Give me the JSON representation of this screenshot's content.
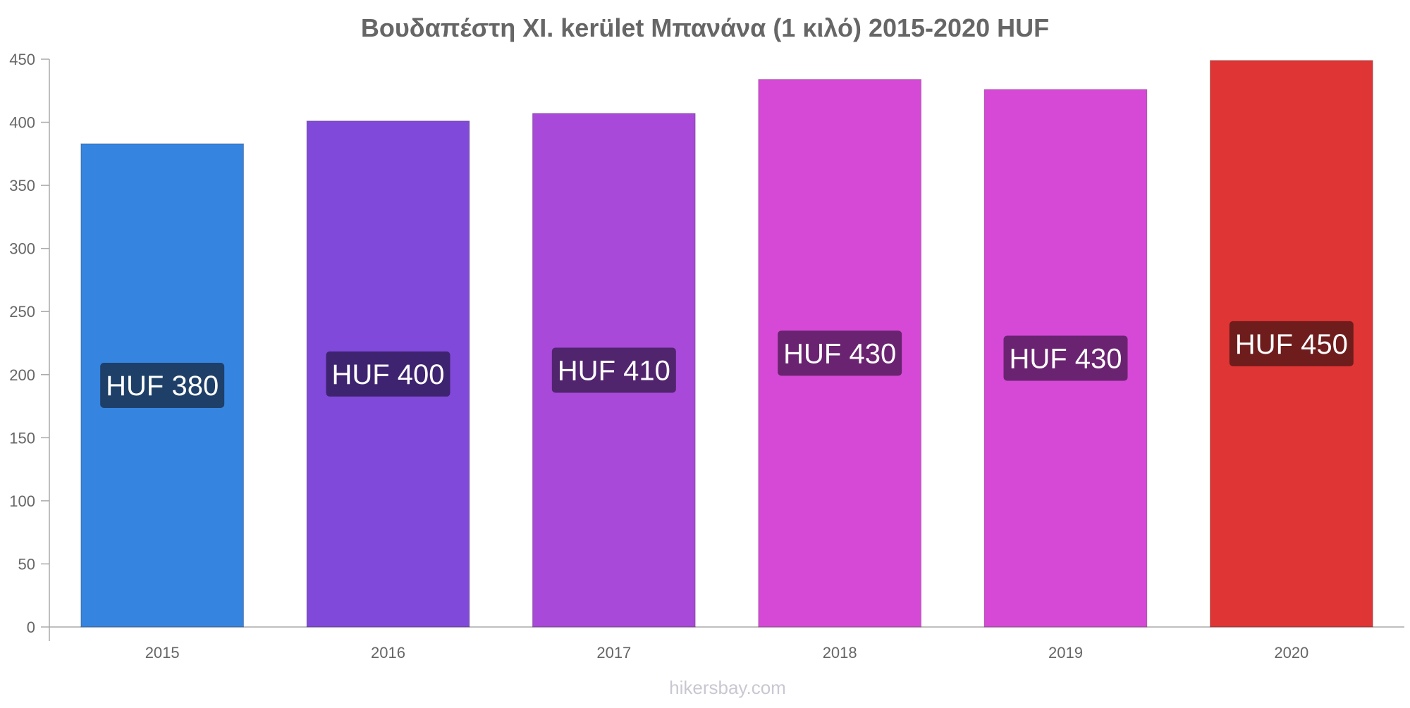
{
  "chart_data": {
    "type": "bar",
    "title": "Βουδαπέστη XI. kerület Μπανάνα (1 κιλό) 2015-2020 HUF",
    "categories": [
      "2015",
      "2016",
      "2017",
      "2018",
      "2019",
      "2020"
    ],
    "values": [
      383,
      401,
      407,
      434,
      426,
      449
    ],
    "data_labels": [
      "HUF 380",
      "HUF 400",
      "HUF 410",
      "HUF 430",
      "HUF 430",
      "HUF 450"
    ],
    "colors": [
      "#3584e0",
      "#8149d9",
      "#a849d9",
      "#d649d6",
      "#d649d6",
      "#e03535"
    ],
    "label_bg_colors": [
      "#1e3f68",
      "#3e2370",
      "#51246e",
      "#6a2370",
      "#6a2370",
      "#6e1c1c"
    ],
    "xlabel": "",
    "ylabel": "",
    "ylim": [
      0,
      450
    ],
    "yticks": [
      0,
      50,
      100,
      150,
      200,
      250,
      300,
      350,
      400,
      450
    ],
    "grid": false,
    "legend": "none"
  },
  "watermark": "hikersbay.com"
}
